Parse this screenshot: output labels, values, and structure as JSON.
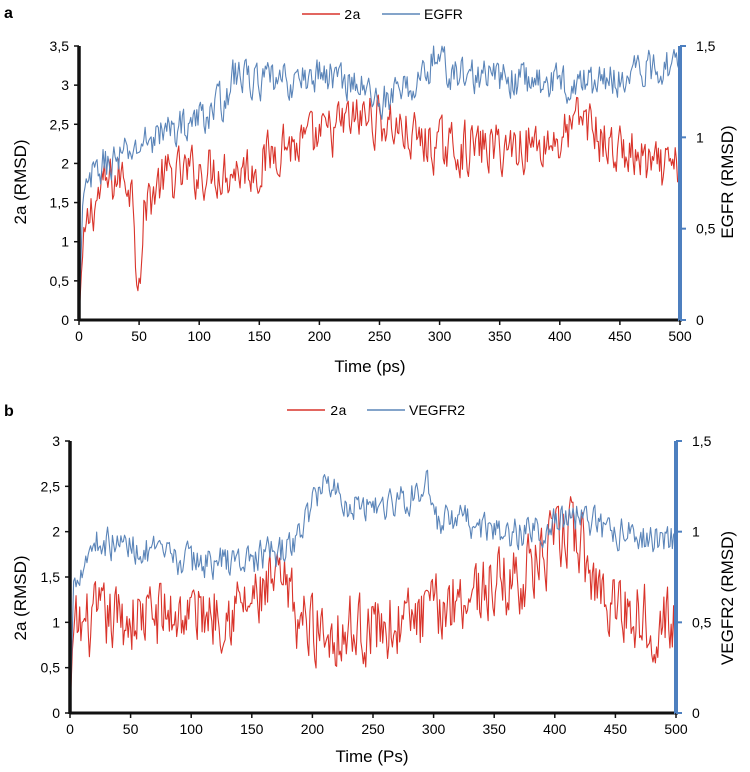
{
  "chart_data": [
    {
      "panel_label": "a",
      "type": "line",
      "legend": [
        "2a",
        "EGFR"
      ],
      "series": [
        {
          "name": "2a",
          "axis": "left",
          "color": "#d9342b",
          "anchors": [
            [
              0,
              0
            ],
            [
              2,
              0.6
            ],
            [
              5,
              1.0
            ],
            [
              10,
              1.4
            ],
            [
              20,
              1.7
            ],
            [
              30,
              1.8
            ],
            [
              40,
              1.85
            ],
            [
              45,
              1.6
            ],
            [
              48,
              0.7
            ],
            [
              52,
              0.75
            ],
            [
              55,
              1.5
            ],
            [
              70,
              1.8
            ],
            [
              100,
              1.9
            ],
            [
              150,
              1.95
            ],
            [
              170,
              2.3
            ],
            [
              180,
              2.2
            ],
            [
              200,
              2.3
            ],
            [
              220,
              2.5
            ],
            [
              240,
              2.6
            ],
            [
              260,
              2.5
            ],
            [
              280,
              2.3
            ],
            [
              300,
              2.2
            ],
            [
              350,
              2.2
            ],
            [
              400,
              2.3
            ],
            [
              420,
              2.6
            ],
            [
              440,
              2.2
            ],
            [
              460,
              2.1
            ],
            [
              480,
              1.9
            ],
            [
              500,
              1.9
            ]
          ],
          "noise": 0.3
        },
        {
          "name": "EGFR",
          "axis": "right",
          "color": "#5b85b9",
          "anchors": [
            [
              0,
              0
            ],
            [
              3,
              0.6
            ],
            [
              8,
              0.75
            ],
            [
              20,
              0.85
            ],
            [
              40,
              0.9
            ],
            [
              60,
              1.0
            ],
            [
              80,
              1.05
            ],
            [
              100,
              1.1
            ],
            [
              120,
              1.2
            ],
            [
              130,
              1.35
            ],
            [
              150,
              1.3
            ],
            [
              180,
              1.3
            ],
            [
              200,
              1.35
            ],
            [
              230,
              1.3
            ],
            [
              250,
              1.2
            ],
            [
              270,
              1.25
            ],
            [
              290,
              1.35
            ],
            [
              295,
              1.45
            ],
            [
              310,
              1.35
            ],
            [
              350,
              1.32
            ],
            [
              400,
              1.3
            ],
            [
              430,
              1.3
            ],
            [
              460,
              1.35
            ],
            [
              480,
              1.38
            ],
            [
              490,
              1.4
            ],
            [
              500,
              1.5
            ]
          ],
          "noise": 0.09
        }
      ],
      "xlabel": "Time (ps)",
      "ylabel_left": "2a (RMSD)",
      "ylabel_right": "EGFR (RMSD)",
      "xlim": [
        0,
        500
      ],
      "ylim_left": [
        0,
        3.5
      ],
      "ylim_right": [
        0,
        1.5
      ],
      "xticks": [
        "0",
        "50",
        "100",
        "150",
        "200",
        "250",
        "300",
        "350",
        "400",
        "450",
        "500"
      ],
      "yticks_left": [
        "0",
        "0,5",
        "1",
        "1,5",
        "2",
        "2,5",
        "3",
        "3,5"
      ],
      "yticks_right": [
        "0",
        "0,5",
        "1",
        "1,5"
      ],
      "grid": false,
      "legend_position": "top-center"
    },
    {
      "panel_label": "b",
      "type": "line",
      "legend": [
        "2a",
        "VEGFR2"
      ],
      "series": [
        {
          "name": "2a",
          "axis": "left",
          "color": "#d9342b",
          "anchors": [
            [
              0,
              0
            ],
            [
              2,
              0.7
            ],
            [
              5,
              0.9
            ],
            [
              20,
              1.0
            ],
            [
              50,
              1.05
            ],
            [
              100,
              1.1
            ],
            [
              150,
              1.2
            ],
            [
              170,
              1.4
            ],
            [
              180,
              1.3
            ],
            [
              190,
              1.0
            ],
            [
              220,
              0.9
            ],
            [
              250,
              0.95
            ],
            [
              280,
              1.0
            ],
            [
              300,
              1.1
            ],
            [
              320,
              1.3
            ],
            [
              350,
              1.4
            ],
            [
              370,
              1.5
            ],
            [
              400,
              1.8
            ],
            [
              410,
              2.0
            ],
            [
              420,
              1.9
            ],
            [
              430,
              1.5
            ],
            [
              450,
              1.2
            ],
            [
              470,
              1.1
            ],
            [
              490,
              1.0
            ],
            [
              500,
              0.95
            ]
          ],
          "noise": 0.35
        },
        {
          "name": "VEGFR2",
          "axis": "right",
          "color": "#5b85b9",
          "anchors": [
            [
              0,
              0
            ],
            [
              3,
              0.7
            ],
            [
              8,
              0.8
            ],
            [
              20,
              0.95
            ],
            [
              50,
              0.92
            ],
            [
              80,
              0.85
            ],
            [
              120,
              0.83
            ],
            [
              150,
              0.85
            ],
            [
              180,
              0.9
            ],
            [
              190,
              1.0
            ],
            [
              200,
              1.15
            ],
            [
              210,
              1.3
            ],
            [
              230,
              1.15
            ],
            [
              260,
              1.15
            ],
            [
              285,
              1.2
            ],
            [
              295,
              1.3
            ],
            [
              300,
              1.05
            ],
            [
              330,
              1.05
            ],
            [
              360,
              0.98
            ],
            [
              380,
              1.0
            ],
            [
              400,
              1.05
            ],
            [
              420,
              1.1
            ],
            [
              440,
              1.0
            ],
            [
              470,
              0.98
            ],
            [
              500,
              0.95
            ]
          ],
          "noise": 0.08
        }
      ],
      "xlabel": "Time (Ps)",
      "ylabel_left": "2a (RMSD)",
      "ylabel_right": "VEGFR2 (RMSD)",
      "xlim": [
        0,
        500
      ],
      "ylim_left": [
        0,
        3
      ],
      "ylim_right": [
        0,
        1.5
      ],
      "xticks": [
        "0",
        "50",
        "100",
        "150",
        "200",
        "250",
        "300",
        "350",
        "400",
        "450",
        "500"
      ],
      "yticks_left": [
        "0",
        "0,5",
        "1",
        "1,5",
        "2",
        "2,5",
        "3"
      ],
      "yticks_right": [
        "0",
        "0,5",
        "1",
        "1,5"
      ],
      "grid": false,
      "legend_position": "top-center"
    }
  ]
}
